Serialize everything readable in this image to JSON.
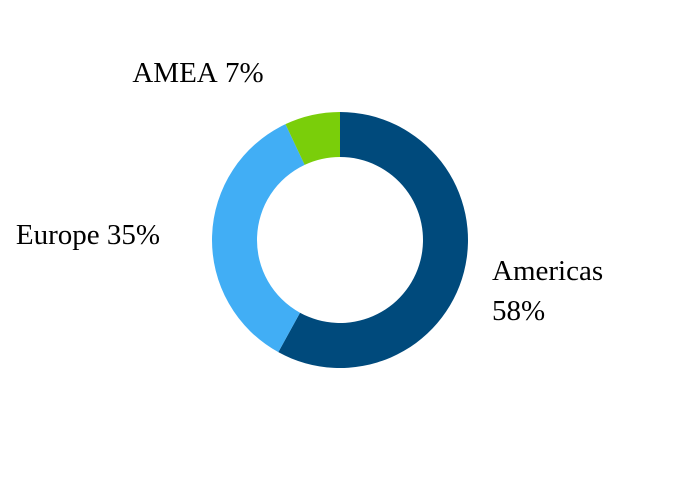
{
  "chart_data": {
    "type": "pie",
    "categories": [
      "Americas",
      "Europe",
      "AMEA"
    ],
    "values": [
      58,
      35,
      7
    ],
    "value_labels": [
      "58%",
      "35%",
      "7%"
    ],
    "colors": [
      "#004a7c",
      "#41aef5",
      "#7ace0a"
    ],
    "donut": true
  }
}
